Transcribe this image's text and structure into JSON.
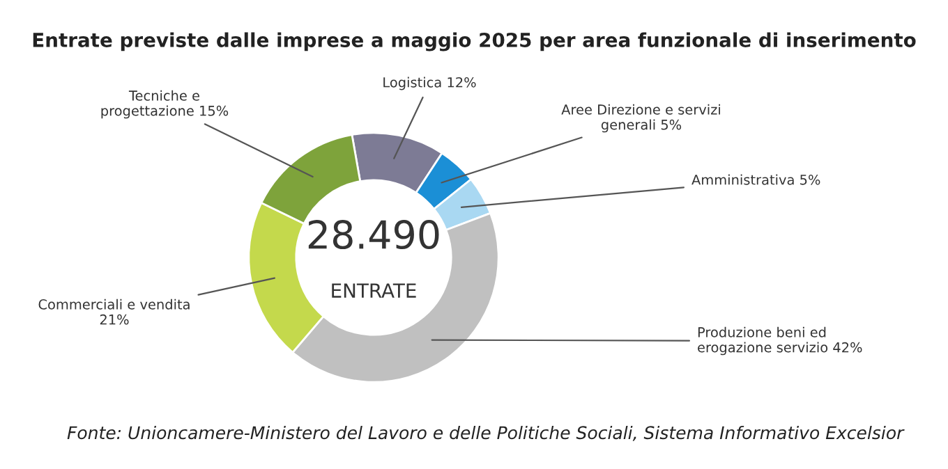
{
  "chart_data": {
    "type": "donut",
    "title": "Entrate previste dalle imprese a maggio 2025 per area funzionale di inserimento",
    "categories": [
      "Logistica",
      "Aree Direzione e servizi\ngenerali",
      "Amministrativa",
      "Produzione beni ed\nerogazione servizio",
      "Commerciali e vendita\n",
      "Tecniche e\nprogettazione"
    ],
    "values": [
      12,
      5,
      5,
      42,
      21,
      15
    ],
    "value_labels": [
      "12%",
      "5%",
      "5%",
      "42%",
      "21%",
      "15%"
    ],
    "colors": [
      "#7d7b95",
      "#1b8fd6",
      "#a9d8f2",
      "#c0c0c0",
      "#c4d94c",
      "#7ea33b"
    ],
    "annotations": [
      "28.490",
      "ENTRATE",
      "Fonte: Unioncamere-Ministero del Lavoro e delle Politiche Sociali, Sistema Informativo Excelsior"
    ],
    "legend": false
  }
}
